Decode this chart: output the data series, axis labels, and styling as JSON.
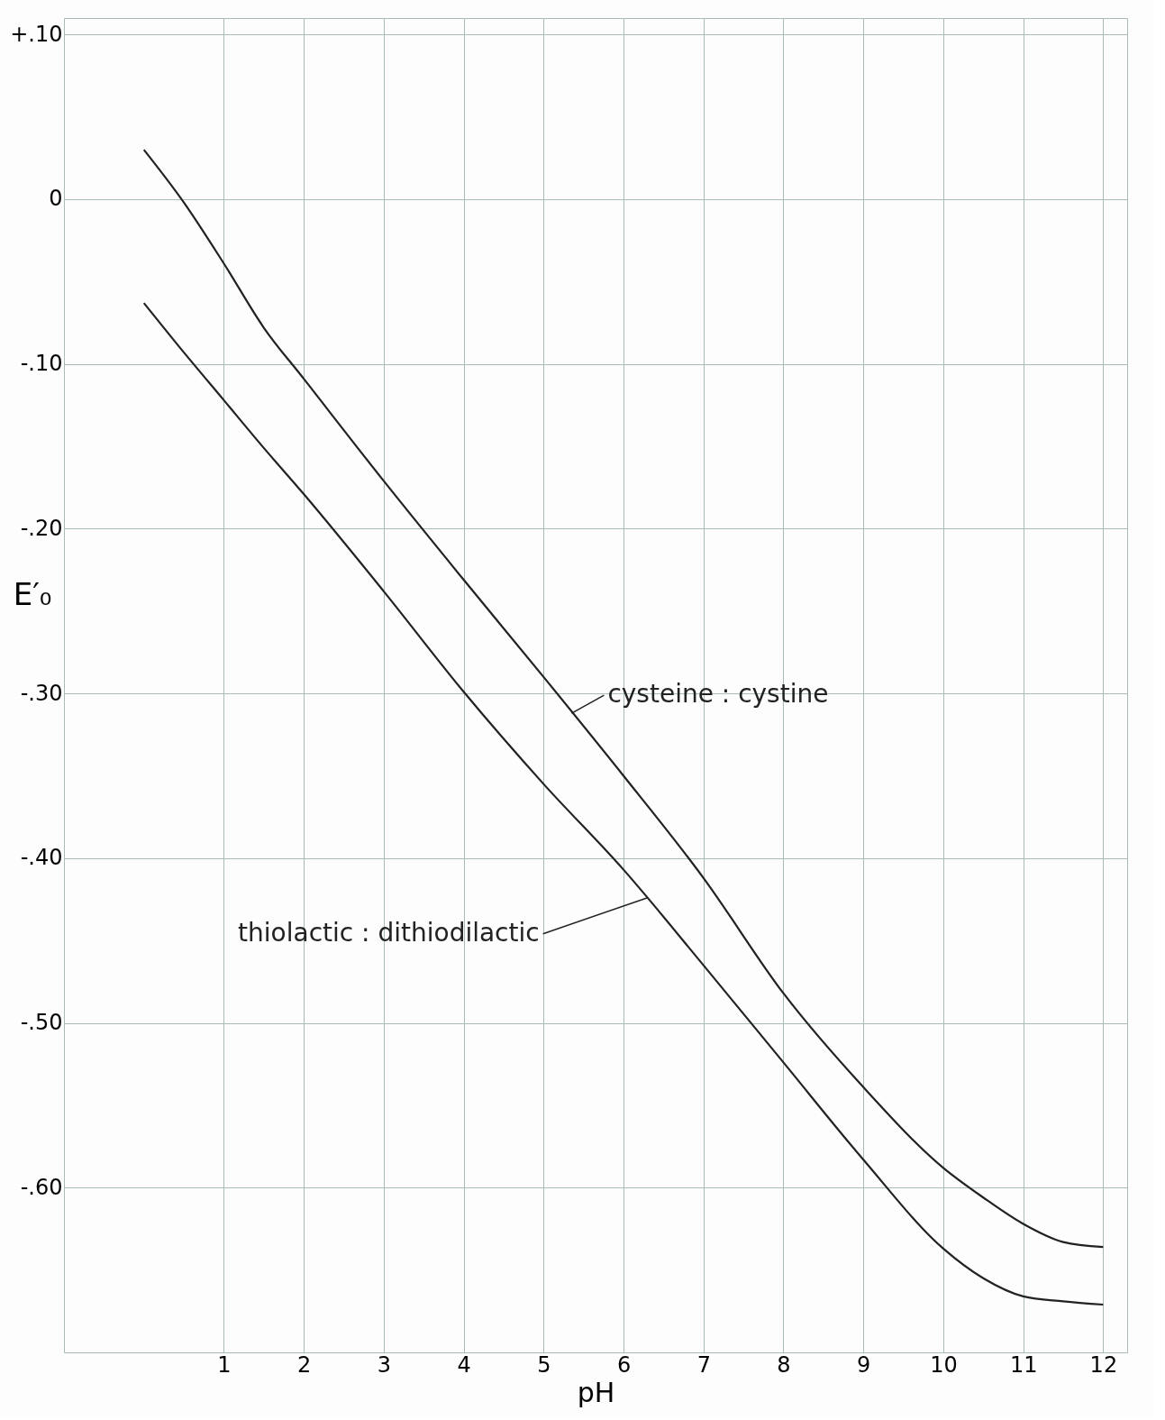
{
  "chart_data": {
    "type": "line",
    "xlabel": "pH",
    "ylabel": "E′₀",
    "x": [
      0,
      0.5,
      1,
      1.5,
      2,
      3,
      4,
      5,
      6,
      7,
      8,
      9,
      10,
      10.5,
      11,
      11.5,
      12
    ],
    "series": [
      {
        "color": "#222222",
        "values": [
          0.03,
          -0.002,
          -0.039,
          -0.078,
          -0.109,
          -0.171,
          -0.231,
          -0.29,
          -0.35,
          -0.412,
          -0.482,
          -0.539,
          -0.588,
          -0.606,
          -0.622,
          -0.633,
          -0.636
        ]
      },
      {
        "color": "#222222",
        "values": [
          -0.063,
          -0.093,
          -0.122,
          -0.151,
          -0.179,
          -0.238,
          -0.299,
          -0.355,
          -0.407,
          -0.465,
          -0.524,
          -0.583,
          -0.637,
          -0.655,
          -0.666,
          -0.669,
          -0.671
        ]
      }
    ],
    "xlim": [
      -1,
      12.3
    ],
    "xticks": [
      1,
      2,
      3,
      4,
      5,
      6,
      7,
      8,
      9,
      10,
      11,
      12
    ],
    "ylim": [
      -0.7,
      0.11
    ],
    "yticks": [
      {
        "value": 0.1,
        "label": "+.10"
      },
      0,
      {
        "value": -0.1,
        "label": "-.10"
      },
      {
        "value": -0.2,
        "label": "-.20"
      },
      {
        "value": -0.3,
        "label": "-.30"
      },
      {
        "value": -0.4,
        "label": "-.40"
      },
      {
        "value": -0.5,
        "label": "-.50"
      },
      {
        "value": -0.6,
        "label": "-.60"
      }
    ],
    "grid": true,
    "line_style": "solid",
    "marker": "none",
    "annotations": [
      {
        "text": "cysteine : cystine",
        "x": 5.35,
        "y": -0.312
      },
      {
        "text": "thiolactic : dithiodilactic",
        "x": 6.3,
        "y": -0.424
      }
    ]
  }
}
